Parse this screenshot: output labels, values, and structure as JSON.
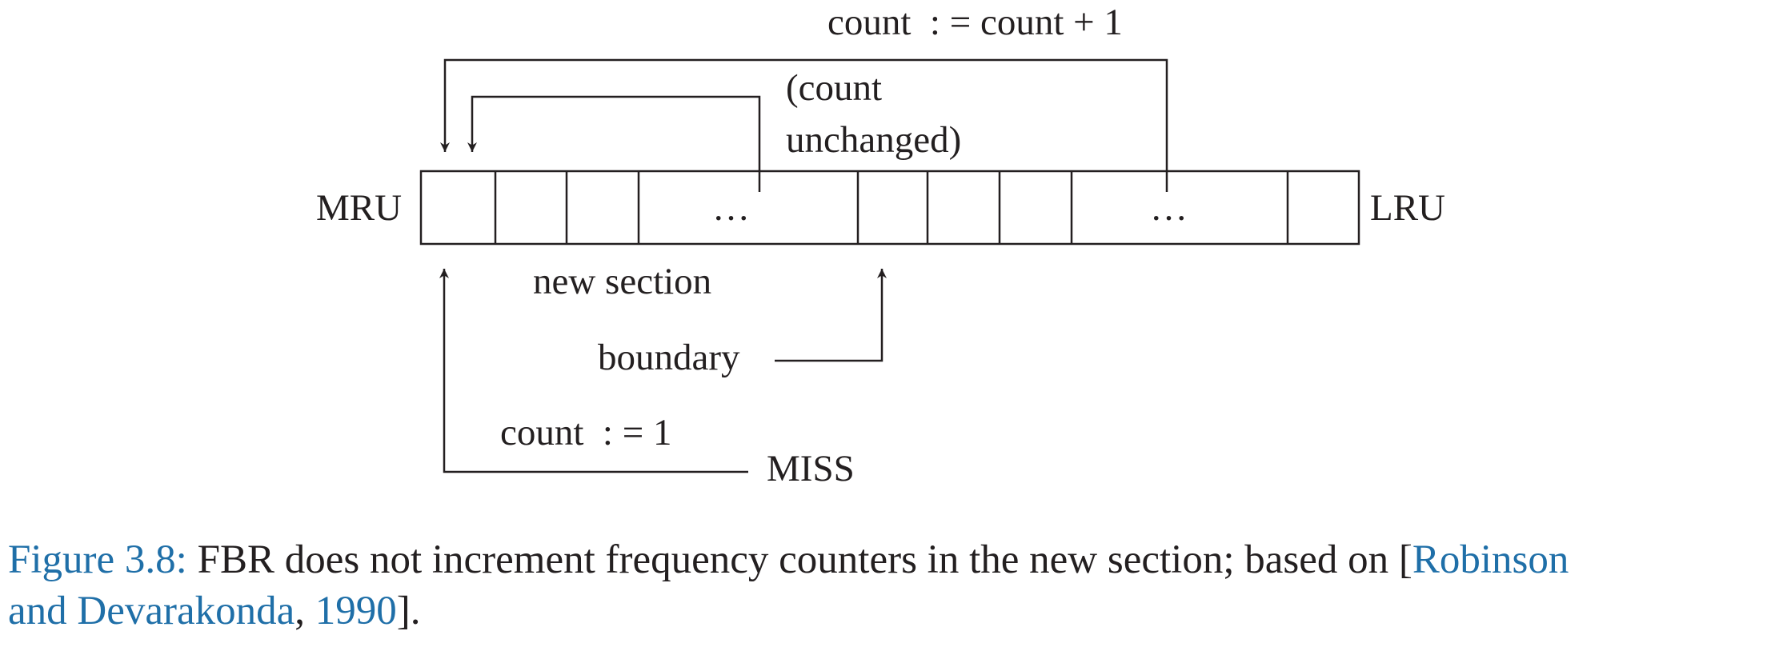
{
  "diagram": {
    "labels": {
      "mru": "MRU",
      "lru": "LRU",
      "ellipsis_new": "…",
      "ellipsis_old": "…",
      "count_increment": "count  : = count + 1",
      "count_unchanged_line1": "(count",
      "count_unchanged_line2": "unchanged)",
      "new_section": "new section",
      "boundary": "boundary",
      "count_reset": "count  : = 1",
      "miss": "MISS"
    },
    "line_color": "#231f20"
  },
  "caption": {
    "figure_label": "Figure 3.8:",
    "text_main": " FBR does not increment frequency counters in the new section; based on [",
    "cite_author_1": "Robinson",
    "cite_author_2": "and Devarakonda",
    "comma": ", ",
    "cite_year": "1990",
    "close": "].",
    "link_color": "#1f6fa8"
  }
}
